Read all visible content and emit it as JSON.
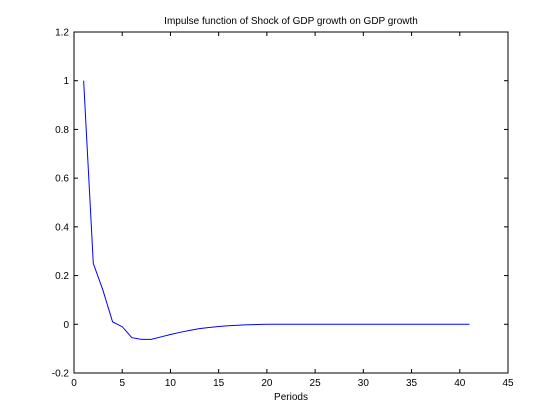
{
  "chart_data": {
    "type": "line",
    "title": "Impulse function of Shock of GDP growth on GDP growth",
    "xlabel": "Periods",
    "ylabel": "",
    "xlim": [
      0,
      45
    ],
    "ylim": [
      -0.2,
      1.2
    ],
    "xticks": [
      0,
      5,
      10,
      15,
      20,
      25,
      30,
      35,
      40,
      45
    ],
    "yticks": [
      -0.2,
      0,
      0.2,
      0.4,
      0.6,
      0.8,
      1,
      1.2
    ],
    "ytick_labels": [
      "-0.2",
      "0",
      "0.2",
      "0.4",
      "0.6",
      "0.8",
      "1",
      "1.2"
    ],
    "grid": false,
    "line_color": "#0000ff",
    "series": [
      {
        "x": [
          1,
          2,
          3,
          4,
          5,
          6,
          7,
          8,
          9,
          10,
          11,
          12,
          13,
          14,
          15,
          16,
          17,
          18,
          19,
          20,
          21,
          22,
          23,
          24,
          25,
          26,
          27,
          28,
          29,
          30,
          31,
          32,
          33,
          34,
          35,
          36,
          37,
          38,
          39,
          40,
          41
        ],
        "values": [
          1.0,
          0.25,
          0.14,
          0.01,
          -0.01,
          -0.055,
          -0.062,
          -0.062,
          -0.052,
          -0.042,
          -0.033,
          -0.025,
          -0.018,
          -0.013,
          -0.009,
          -0.006,
          -0.004,
          -0.002,
          -0.001,
          0,
          0,
          0,
          0,
          0,
          0,
          0,
          0,
          0,
          0,
          0,
          0,
          0,
          0,
          0,
          0,
          0,
          0,
          0,
          0,
          0,
          0
        ]
      }
    ]
  }
}
